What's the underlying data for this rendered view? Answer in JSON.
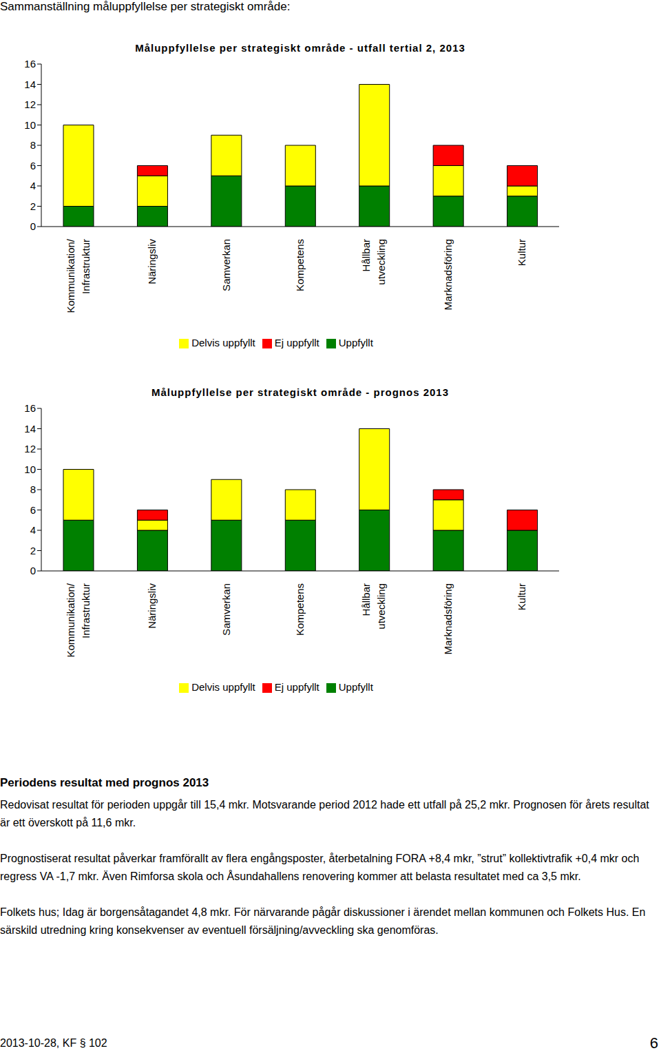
{
  "heading": "Sammanställning måluppfyllelse per strategiskt område:",
  "chart_data": [
    {
      "type": "bar",
      "title": "Måluppfyllelse per strategiskt område - utfall tertial 2, 2013",
      "categories": [
        "Kommunikation/ Infrastruktur",
        "Näringsliv",
        "Samverkan",
        "Kompetens",
        "Hållbar utveckling",
        "Marknadsföring",
        "Kultur"
      ],
      "series": [
        {
          "name": "Uppfyllt",
          "color": "#008000",
          "values": [
            2,
            2,
            5,
            4,
            4,
            3,
            3
          ]
        },
        {
          "name": "Delvis uppfyllt",
          "color": "#ffff00",
          "values": [
            8,
            3,
            4,
            4,
            10,
            3,
            1
          ]
        },
        {
          "name": "Ej uppfyllt",
          "color": "#ff0000",
          "values": [
            0,
            1,
            0,
            0,
            0,
            2,
            2
          ]
        }
      ],
      "ylim": [
        0,
        16
      ],
      "yticks": [
        0,
        2,
        4,
        6,
        8,
        10,
        12,
        14,
        16
      ],
      "stacked": true,
      "grid": false,
      "legend": "bottom"
    },
    {
      "type": "bar",
      "title": "Måluppfyllelse per strategiskt område - prognos 2013",
      "categories": [
        "Kommunikation/ Infrastruktur",
        "Näringsliv",
        "Samverkan",
        "Kompetens",
        "Hållbar utveckling",
        "Marknadsföring",
        "Kultur"
      ],
      "series": [
        {
          "name": "Uppfyllt",
          "color": "#008000",
          "values": [
            5,
            4,
            5,
            5,
            6,
            4,
            4
          ]
        },
        {
          "name": "Delvis uppfyllt",
          "color": "#ffff00",
          "values": [
            5,
            1,
            4,
            3,
            8,
            3,
            0
          ]
        },
        {
          "name": "Ej uppfyllt",
          "color": "#ff0000",
          "values": [
            0,
            1,
            0,
            0,
            0,
            1,
            2
          ]
        }
      ],
      "ylim": [
        0,
        16
      ],
      "yticks": [
        0,
        2,
        4,
        6,
        8,
        10,
        12,
        14,
        16
      ],
      "stacked": true,
      "grid": false,
      "legend": "bottom"
    }
  ],
  "section": {
    "title": "Periodens resultat med prognos 2013",
    "paragraphs": [
      "Redovisat resultat för perioden uppgår till 15,4 mkr. Motsvarande period 2012 hade ett utfall på 25,2 mkr. Prognosen för årets resultat är ett överskott på 11,6 mkr.",
      "Prognostiserat resultat påverkar framförallt av flera engångsposter, återbetalning FORA +8,4 mkr, ”strut” kollektivtrafik +0,4 mkr och regress VA -1,7 mkr. Även Rimforsa skola och Åsundahallens renovering kommer att belasta resultatet med ca 3,5 mkr.",
      "Folkets hus; Idag är borgensåtagandet 4,8 mkr. För närvarande pågår diskussioner i ärendet mellan kommunen och Folkets Hus. En särskild utredning kring konsekvenser av eventuell försäljning/avveckling ska genomföras."
    ]
  },
  "footer": {
    "text": "2013-10-28, KF § 102",
    "page": 6
  }
}
